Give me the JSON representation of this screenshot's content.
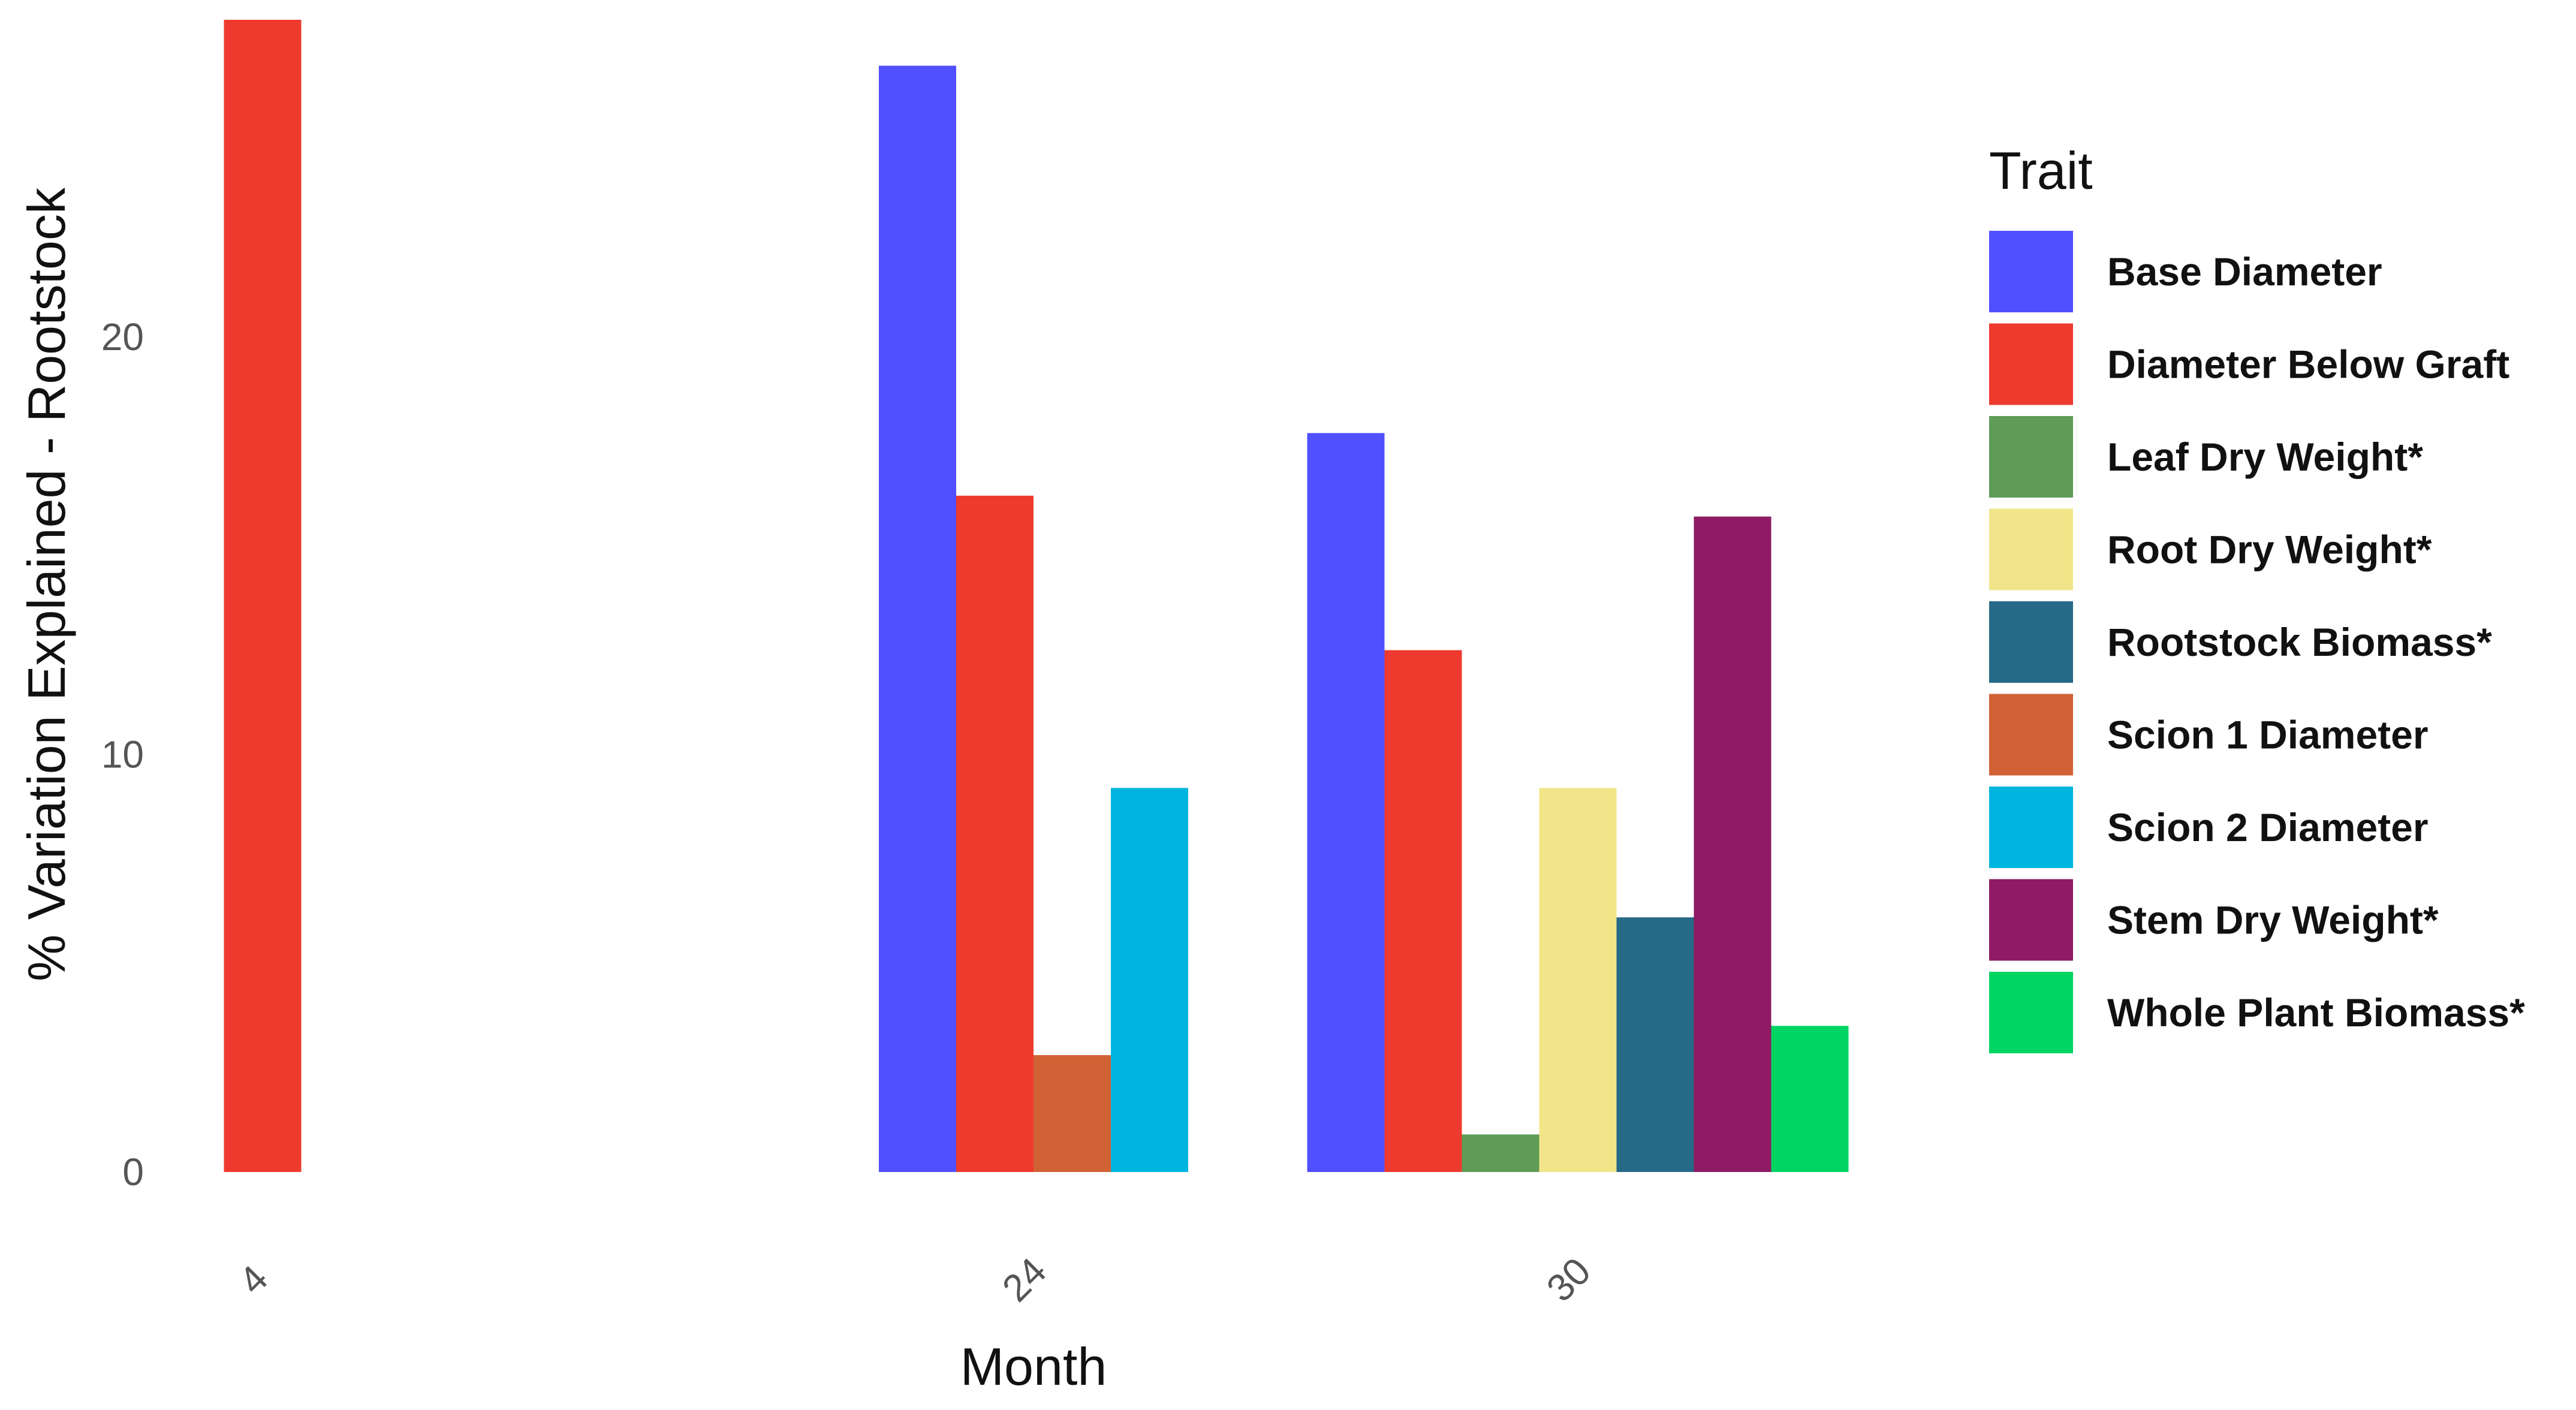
{
  "chart_data": {
    "type": "bar",
    "xlabel": "Month",
    "ylabel": "% Variation Explained - Rootstock",
    "ylim": [
      0,
      27.6
    ],
    "yticks": [
      0,
      10,
      20
    ],
    "categories": [
      "4",
      "24",
      "30"
    ],
    "legend_title": "Trait",
    "legend_position": "right",
    "grid": false,
    "series": [
      {
        "name": "Base Diameter",
        "color": "#5050FF",
        "values": [
          null,
          26.5,
          17.7
        ]
      },
      {
        "name": "Diameter Below Graft",
        "color": "#EE3A2E",
        "values": [
          27.6,
          16.2,
          12.5
        ]
      },
      {
        "name": "Leaf Dry Weight*",
        "color": "#5E9C57",
        "values": [
          null,
          null,
          0.9
        ]
      },
      {
        "name": "Root Dry Weight*",
        "color": "#F2E589",
        "values": [
          null,
          null,
          9.2
        ]
      },
      {
        "name": "Rootstock Biomass*",
        "color": "#276A87",
        "values": [
          null,
          null,
          6.1
        ]
      },
      {
        "name": "Scion 1 Diameter",
        "color": "#D06235",
        "values": [
          null,
          2.8,
          null
        ]
      },
      {
        "name": "Scion 2 Diameter",
        "color": "#00B5E0",
        "values": [
          null,
          9.2,
          null
        ]
      },
      {
        "name": "Stem Dry Weight*",
        "color": "#8E1B63",
        "values": [
          null,
          null,
          15.7
        ]
      },
      {
        "name": "Whole Plant Biomass*",
        "color": "#00D462",
        "values": [
          null,
          null,
          3.5
        ]
      }
    ]
  }
}
